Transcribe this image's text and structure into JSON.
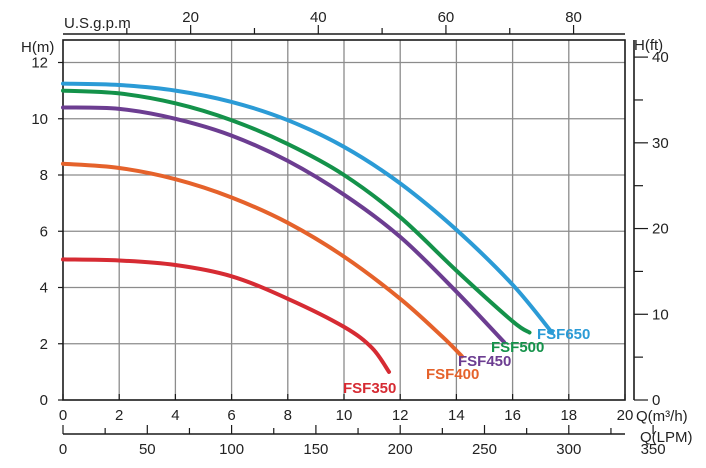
{
  "chart_data": {
    "type": "line",
    "units": {
      "left": "H(m)",
      "right": "H(ft)",
      "top": "U.S.g.p.m",
      "bottom_primary": "Q(m³/h)",
      "bottom_secondary": "Q(LPM)"
    },
    "axes": {
      "x_m3h": {
        "range": [
          0,
          20
        ],
        "ticks": [
          "0",
          "2",
          "4",
          "6",
          "8",
          "10",
          "12",
          "14",
          "16",
          "18",
          "20"
        ]
      },
      "y_m": {
        "range": [
          0,
          12.8
        ],
        "ticks": [
          "0",
          "2",
          "4",
          "6",
          "8",
          "10",
          "12"
        ]
      },
      "y_ft": {
        "ticks": [
          "0",
          "10",
          "20",
          "30",
          "40"
        ]
      },
      "x_gpm": {
        "ticks": [
          "20",
          "40",
          "60",
          "80"
        ]
      },
      "x_lpm": {
        "ticks": [
          "0",
          "50",
          "100",
          "150",
          "200",
          "250",
          "300",
          "350"
        ]
      }
    },
    "grid": true,
    "series": [
      {
        "name": "FSF350",
        "color": "#d62b33",
        "points": [
          [
            0,
            5.0
          ],
          [
            2,
            4.96
          ],
          [
            4,
            4.8
          ],
          [
            6,
            4.4
          ],
          [
            8,
            3.6
          ],
          [
            10,
            2.6
          ],
          [
            11,
            1.85
          ],
          [
            11.6,
            1.0
          ]
        ]
      },
      {
        "name": "FSF400",
        "color": "#e5622b",
        "points": [
          [
            0,
            8.4
          ],
          [
            2,
            8.25
          ],
          [
            4,
            7.85
          ],
          [
            6,
            7.2
          ],
          [
            8,
            6.3
          ],
          [
            10,
            5.1
          ],
          [
            12,
            3.6
          ],
          [
            13.5,
            2.25
          ],
          [
            14.2,
            1.55
          ]
        ]
      },
      {
        "name": "FSF450",
        "color": "#6c3d91",
        "points": [
          [
            0,
            10.4
          ],
          [
            2,
            10.35
          ],
          [
            4,
            10.0
          ],
          [
            6,
            9.4
          ],
          [
            8,
            8.5
          ],
          [
            10,
            7.3
          ],
          [
            12,
            5.8
          ],
          [
            14,
            3.85
          ],
          [
            15.7,
            2.05
          ]
        ]
      },
      {
        "name": "FSF500",
        "color": "#14924a",
        "points": [
          [
            0,
            11.0
          ],
          [
            2,
            10.9
          ],
          [
            4,
            10.55
          ],
          [
            6,
            9.95
          ],
          [
            8,
            9.1
          ],
          [
            10,
            8.0
          ],
          [
            12,
            6.5
          ],
          [
            14,
            4.6
          ],
          [
            16,
            2.8
          ],
          [
            16.6,
            2.4
          ]
        ]
      },
      {
        "name": "FSF650",
        "color": "#2b9bd6",
        "points": [
          [
            0,
            11.25
          ],
          [
            2,
            11.2
          ],
          [
            4,
            11.0
          ],
          [
            6,
            10.6
          ],
          [
            8,
            9.95
          ],
          [
            10,
            9.0
          ],
          [
            12,
            7.7
          ],
          [
            14,
            6.05
          ],
          [
            16,
            4.1
          ],
          [
            17.4,
            2.4
          ]
        ]
      }
    ]
  }
}
